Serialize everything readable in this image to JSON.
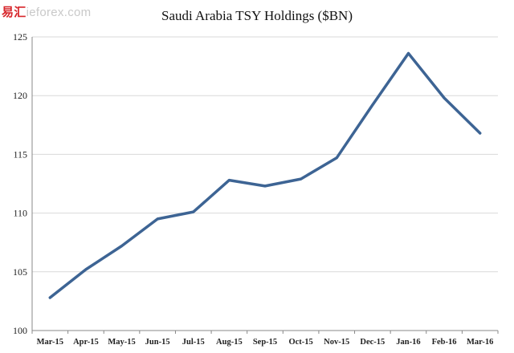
{
  "watermark": {
    "brand": "易汇",
    "site": "ieforex.com"
  },
  "chart_data": {
    "type": "line",
    "title": "Saudi Arabia TSY Holdings ($BN)",
    "xlabel": "",
    "ylabel": "",
    "categories": [
      "Mar-15",
      "Apr-15",
      "May-15",
      "Jun-15",
      "Jul-15",
      "Aug-15",
      "Sep-15",
      "Oct-15",
      "Nov-15",
      "Dec-15",
      "Jan-16",
      "Feb-16",
      "Mar-16"
    ],
    "series": [
      {
        "values": [
          102.8,
          105.2,
          107.2,
          109.5,
          110.1,
          112.8,
          112.3,
          112.9,
          114.7,
          119.2,
          123.6,
          119.8,
          116.8
        ]
      }
    ],
    "ylim": [
      100,
      125
    ],
    "yticks": [
      100,
      105,
      110,
      115,
      120,
      125
    ],
    "grid": true,
    "legend": "none",
    "colors": {
      "line": "#3d6494",
      "grid": "#d9d9d9",
      "axis": "#888888"
    }
  }
}
